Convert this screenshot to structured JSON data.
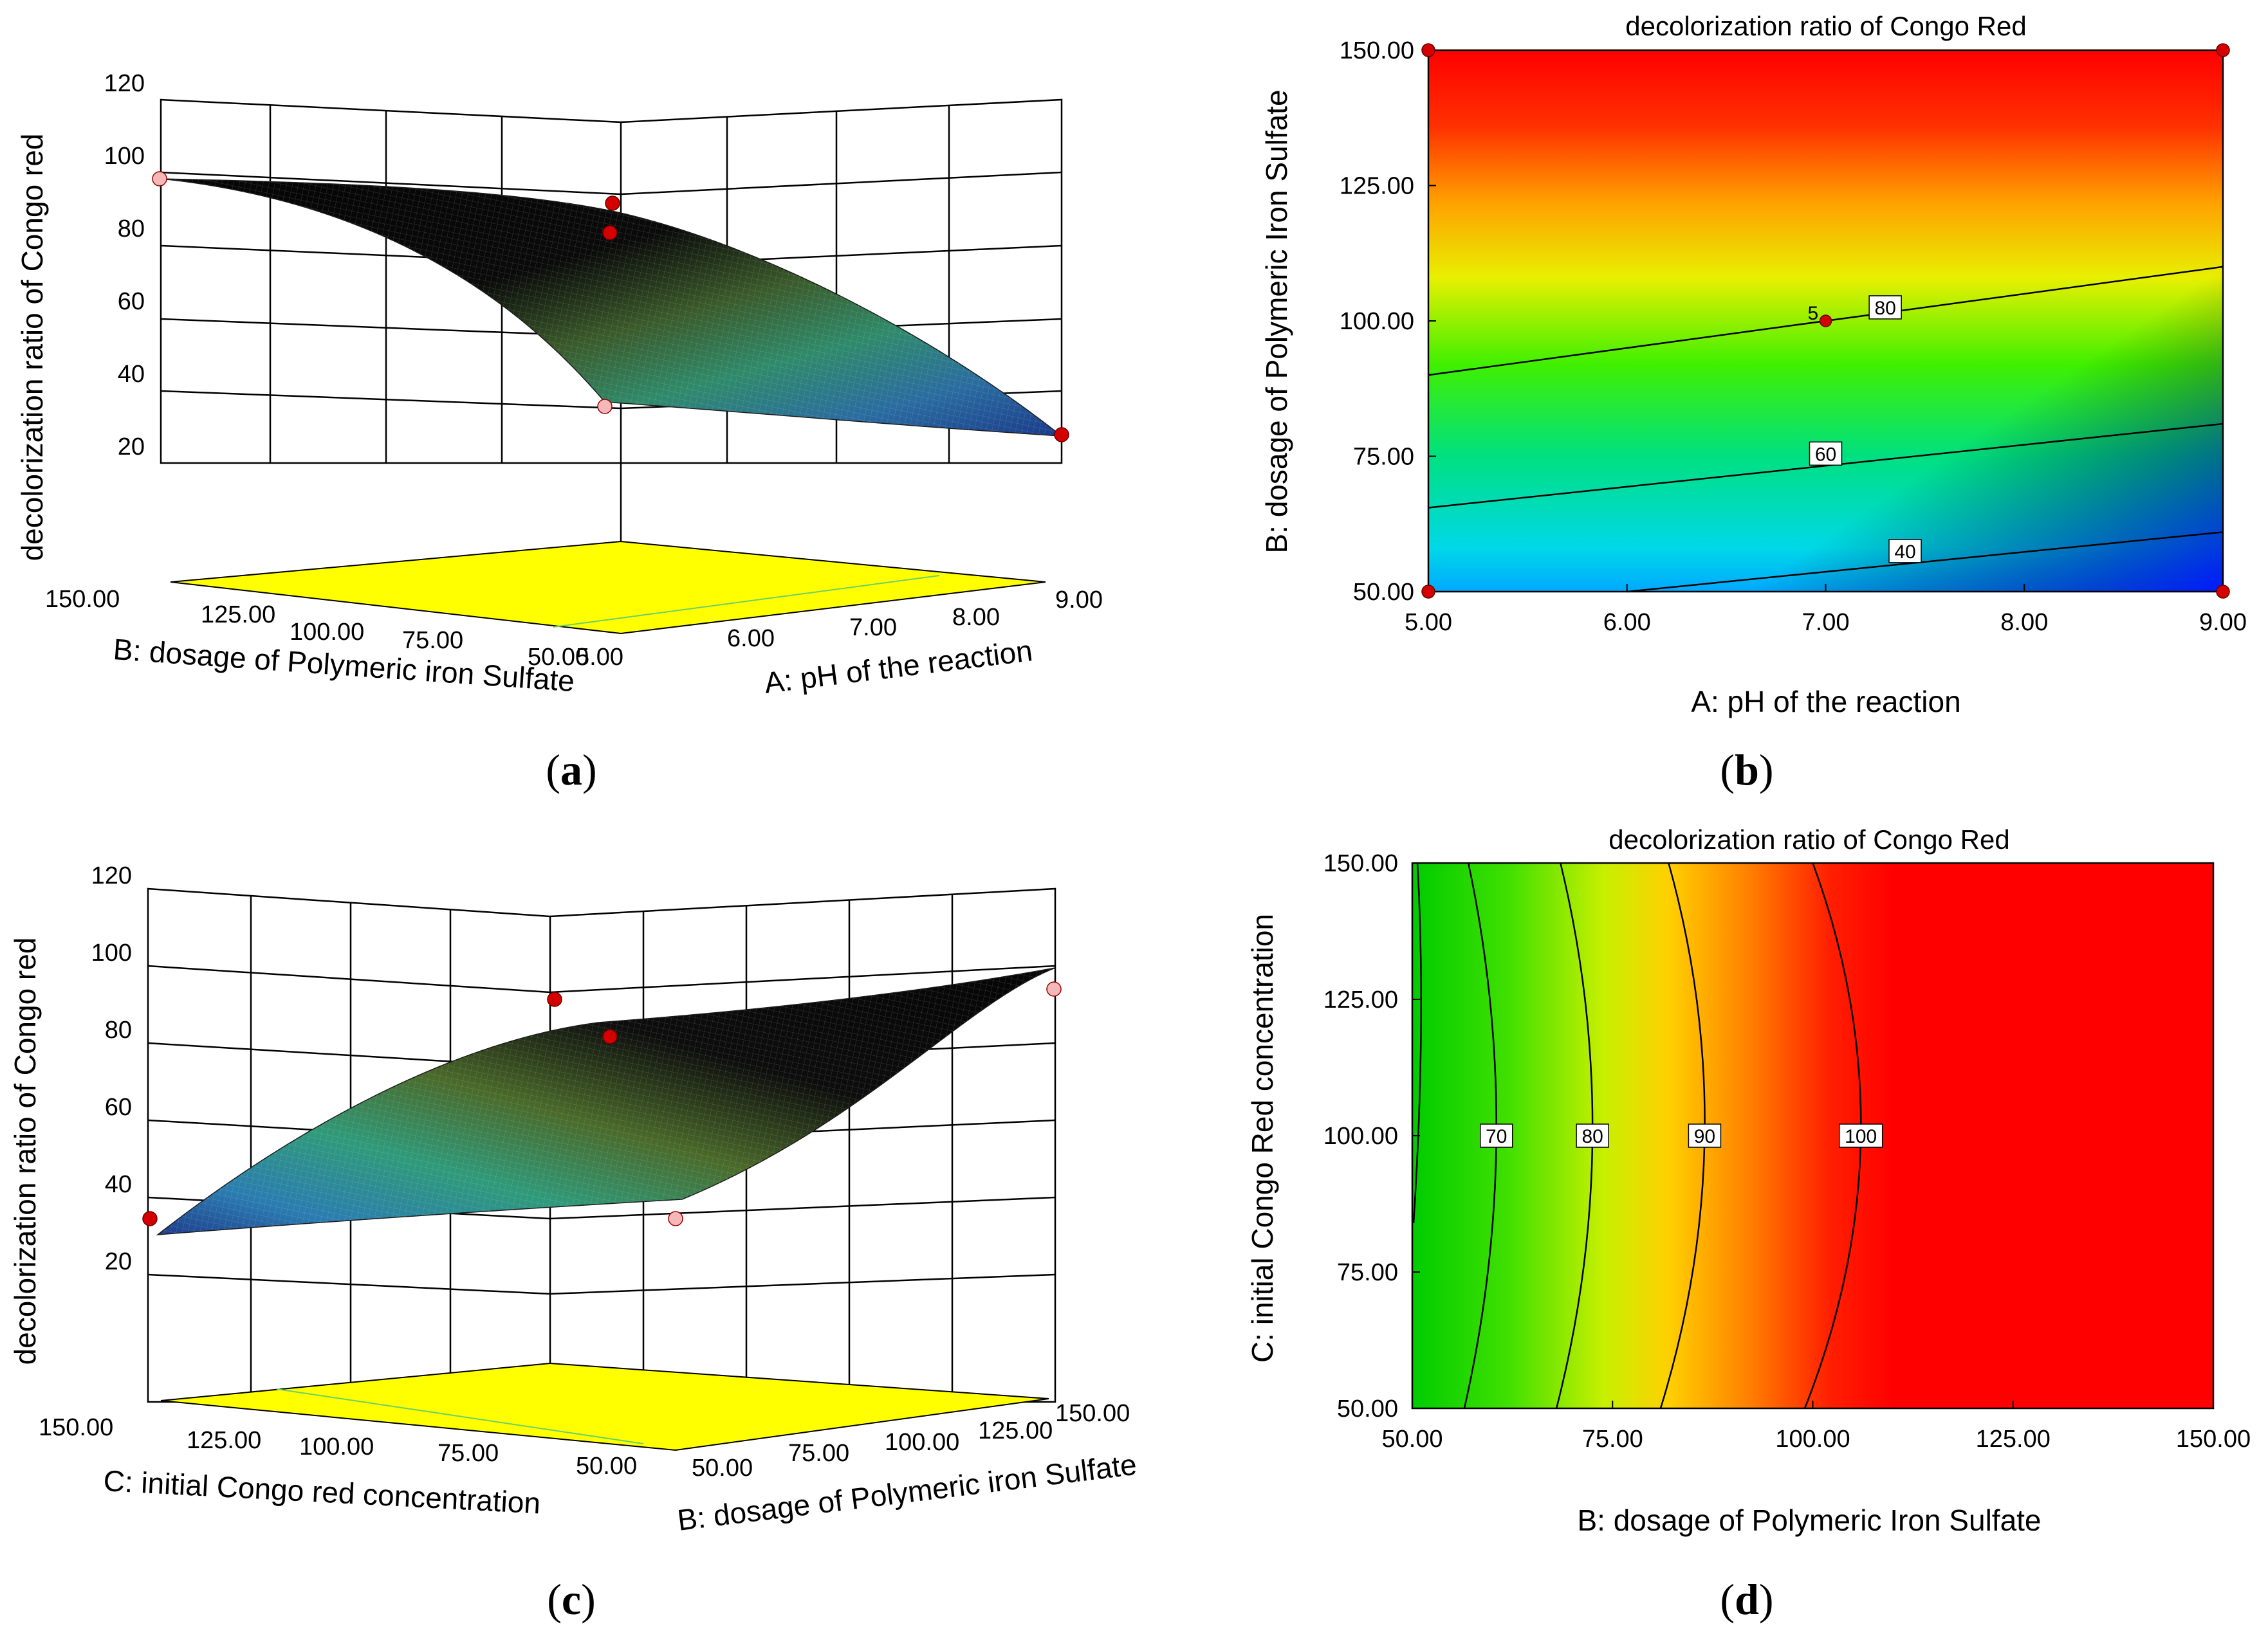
{
  "panels": {
    "a": {
      "caption": "a",
      "chart_data": {
        "type": "surface3d",
        "zlabel": "decolorization ratio of Congo red",
        "z_ticks": [
          "20",
          "40",
          "60",
          "80",
          "100",
          "120"
        ],
        "xlabel": "A: pH of the reaction",
        "x_ticks": [
          "5.00",
          "6.00",
          "7.00",
          "8.00",
          "9.00"
        ],
        "ylabel": "B: dosage of Polymeric iron Sulfate",
        "y_ticks": [
          "150.00",
          "125.00",
          "100.00",
          "75.00",
          "50.00"
        ],
        "corner_values": {
          "pH5_dose150": 96,
          "pH9_dose150": 88,
          "pH5_dose50": 38,
          "pH9_dose50": 30
        },
        "center_points": [
          {
            "name": "center-high",
            "value": 89
          },
          {
            "name": "center-low",
            "value": 83
          }
        ],
        "design_points": [
          {
            "name": "pH5-dose150",
            "value": 96,
            "color": "#f4b8b8"
          },
          {
            "name": "pH5-dose50",
            "value": 32,
            "color": "#f4b8b8"
          },
          {
            "name": "pH9-dose50",
            "value": 29,
            "color": "#d40000"
          }
        ]
      }
    },
    "b": {
      "caption": "b",
      "chart_data": {
        "type": "contour",
        "title": "decolorization ratio of Congo Red",
        "xlabel": "A: pH of the reaction",
        "ylabel": "B: dosage of Polymeric Iron Sulfate",
        "x_ticks": [
          "5.00",
          "6.00",
          "7.00",
          "8.00",
          "9.00"
        ],
        "y_ticks": [
          "50.00",
          "75.00",
          "100.00",
          "125.00",
          "150.00"
        ],
        "xlim": [
          5,
          9
        ],
        "ylim": [
          50,
          150
        ],
        "contours": [
          {
            "level": "80",
            "label": "80",
            "from": [
              5.0,
              90
            ],
            "to": [
              9.0,
              110
            ],
            "label_at": [
              7.3,
              102.5
            ]
          },
          {
            "level": "60",
            "label": "60",
            "from": [
              5.0,
              65.5
            ],
            "to": [
              9.0,
              81
            ],
            "label_at": [
              7.0,
              75.5
            ]
          },
          {
            "level": "40",
            "label": "40",
            "from": [
              6.0,
              50
            ],
            "to": [
              9.0,
              61
            ],
            "label_at": [
              7.4,
              57.5
            ]
          }
        ],
        "center_label": "5",
        "center_point": [
          7.0,
          100
        ],
        "design_points": [
          [
            5,
            150
          ],
          [
            9,
            150
          ],
          [
            5,
            50
          ],
          [
            9,
            50
          ]
        ]
      }
    },
    "c": {
      "caption": "c",
      "chart_data": {
        "type": "surface3d",
        "zlabel": "decolorization ratio of Congo red",
        "z_ticks": [
          "20",
          "40",
          "60",
          "80",
          "100",
          "120"
        ],
        "xlabel": "B: dosage of Polymeric iron Sulfate",
        "x_ticks": [
          "50.00",
          "75.00",
          "100.00",
          "125.00",
          "150.00"
        ],
        "ylabel": "C: initial Congo red concentration",
        "y_ticks": [
          "150.00",
          "125.00",
          "100.00",
          "75.00",
          "50.00"
        ],
        "center_points": [
          {
            "name": "center-high",
            "value": 90
          },
          {
            "name": "center-low",
            "value": 83
          }
        ],
        "design_points": [
          {
            "name": "dose50-conc150",
            "value": 34,
            "color": "#d40000"
          },
          {
            "name": "dose50-conc50",
            "value": 34,
            "color": "#f4b8b8"
          },
          {
            "name": "dose150-conc50",
            "value": 96,
            "color": "#f4b8b8"
          }
        ]
      }
    },
    "d": {
      "caption": "d",
      "chart_data": {
        "type": "contour",
        "title": "decolorization ratio of Congo Red",
        "xlabel": "B: dosage of Polymeric Iron Sulfate",
        "ylabel": "C: initial Congo Red concentration",
        "x_ticks": [
          "50.00",
          "75.00",
          "100.00",
          "125.00",
          "150.00"
        ],
        "y_ticks": [
          "50.00",
          "75.00",
          "100.00",
          "125.00",
          "150.00"
        ],
        "xlim": [
          50,
          150
        ],
        "ylim": [
          50,
          150
        ],
        "contours": [
          {
            "level": "70",
            "label": "70",
            "x_at_50": 56.5,
            "x_at_100": 60.5,
            "x_at_150": 57.0
          },
          {
            "level": "80",
            "label": "80",
            "x_at_50": 68.0,
            "x_at_100": 72.5,
            "x_at_150": 68.5
          },
          {
            "level": "90",
            "label": "90",
            "x_at_50": 81.0,
            "x_at_100": 86.5,
            "x_at_150": 82.0
          },
          {
            "level": "100",
            "label": "100",
            "x_at_50": 99.0,
            "x_at_100": 106.0,
            "x_at_150": 100.0
          }
        ]
      }
    }
  }
}
